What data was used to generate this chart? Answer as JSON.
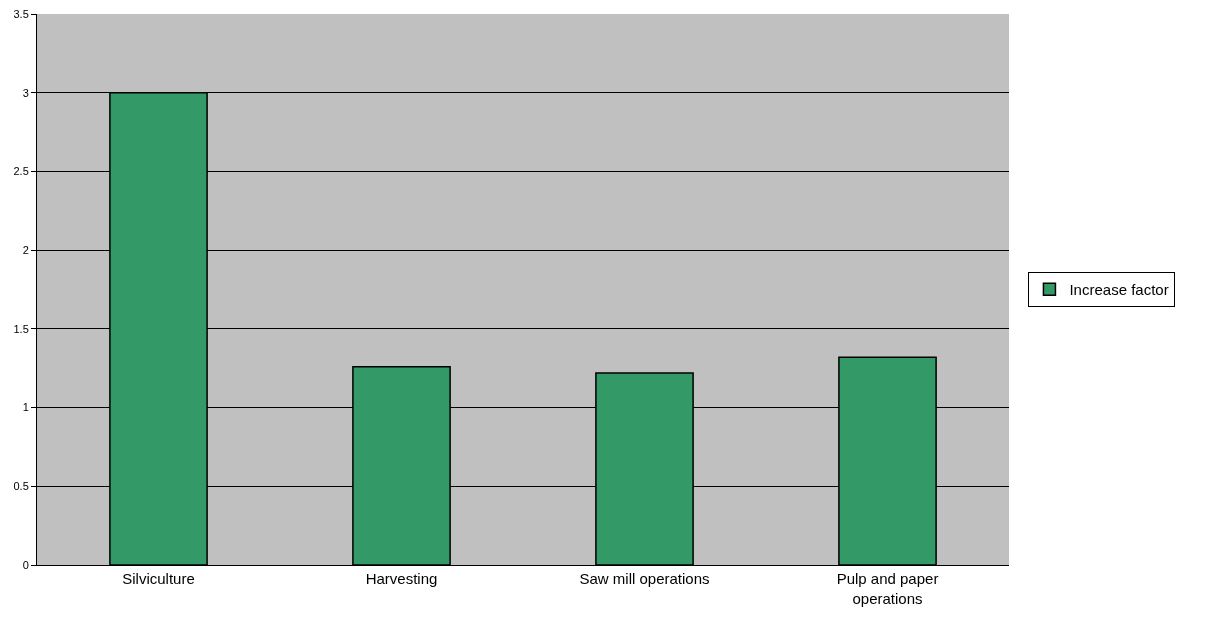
{
  "chart_data": {
    "type": "bar",
    "categories": [
      "Silviculture",
      "Harvesting",
      "Saw mill operations",
      "Pulp and paper operations"
    ],
    "series": [
      {
        "name": "Increase factor",
        "color": "#339966",
        "values": [
          3.0,
          1.26,
          1.22,
          1.32
        ]
      }
    ],
    "ylim": [
      0,
      3.5
    ],
    "yticks": [
      0,
      0.5,
      1,
      1.5,
      2,
      2.5,
      3,
      3.5
    ],
    "grid": "y",
    "legend": "right"
  }
}
